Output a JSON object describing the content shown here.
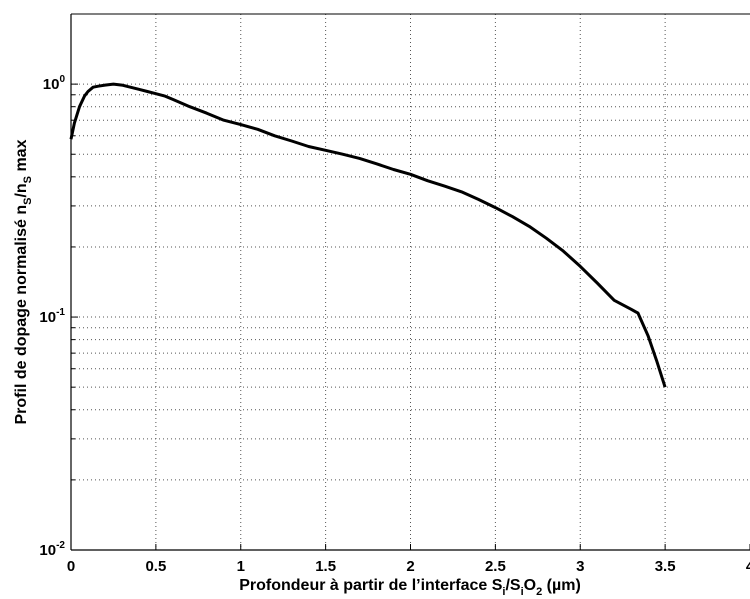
{
  "chart_data": {
    "type": "line",
    "title": "",
    "xlabel": {
      "prefix": "Profondeur à partir de l’interface S",
      "sub1": "i",
      "mid": "/S",
      "sub2": "i",
      "mid2": "O",
      "sub3": "2",
      "suffix": " (µm)"
    },
    "ylabel": {
      "prefix": "Profil de dopage normalisé n",
      "sub1": "S",
      "mid": "/n",
      "sub2": "S",
      "suffix": " max"
    },
    "xlim": [
      0,
      4
    ],
    "ylim": [
      0.01,
      2
    ],
    "yscale": "log",
    "grid": true,
    "x_ticks": [
      {
        "value": 0,
        "label": "0"
      },
      {
        "value": 0.5,
        "label": "0.5"
      },
      {
        "value": 1,
        "label": "1"
      },
      {
        "value": 1.5,
        "label": "1.5"
      },
      {
        "value": 2,
        "label": "2"
      },
      {
        "value": 2.5,
        "label": "2.5"
      },
      {
        "value": 3,
        "label": "3"
      },
      {
        "value": 3.5,
        "label": "3.5"
      },
      {
        "value": 4,
        "label": "4"
      }
    ],
    "y_ticks": [
      {
        "value": 0.01,
        "base": "10",
        "exp": "-2"
      },
      {
        "value": 0.1,
        "base": "10",
        "exp": "-1"
      },
      {
        "value": 1,
        "base": "10",
        "exp": "0"
      }
    ],
    "series": [
      {
        "color": "#000000",
        "x": [
          0,
          0.02,
          0.05,
          0.08,
          0.1,
          0.13,
          0.16,
          0.2,
          0.25,
          0.3,
          0.35,
          0.4,
          0.45,
          0.5,
          0.55,
          0.6,
          0.7,
          0.8,
          0.9,
          1.0,
          1.1,
          1.2,
          1.3,
          1.4,
          1.5,
          1.6,
          1.7,
          1.8,
          1.9,
          2.0,
          2.1,
          2.2,
          2.3,
          2.4,
          2.5,
          2.6,
          2.7,
          2.8,
          2.9,
          3.0,
          3.1,
          3.2,
          3.3,
          3.34,
          3.4,
          3.45,
          3.5
        ],
        "y": [
          0.58,
          0.68,
          0.8,
          0.89,
          0.93,
          0.97,
          0.98,
          0.99,
          1.0,
          0.99,
          0.97,
          0.95,
          0.93,
          0.91,
          0.89,
          0.86,
          0.8,
          0.75,
          0.7,
          0.67,
          0.64,
          0.6,
          0.57,
          0.54,
          0.52,
          0.5,
          0.48,
          0.455,
          0.43,
          0.41,
          0.385,
          0.365,
          0.345,
          0.32,
          0.295,
          0.27,
          0.245,
          0.218,
          0.192,
          0.165,
          0.14,
          0.118,
          0.108,
          0.104,
          0.083,
          0.065,
          0.05
        ]
      }
    ]
  }
}
